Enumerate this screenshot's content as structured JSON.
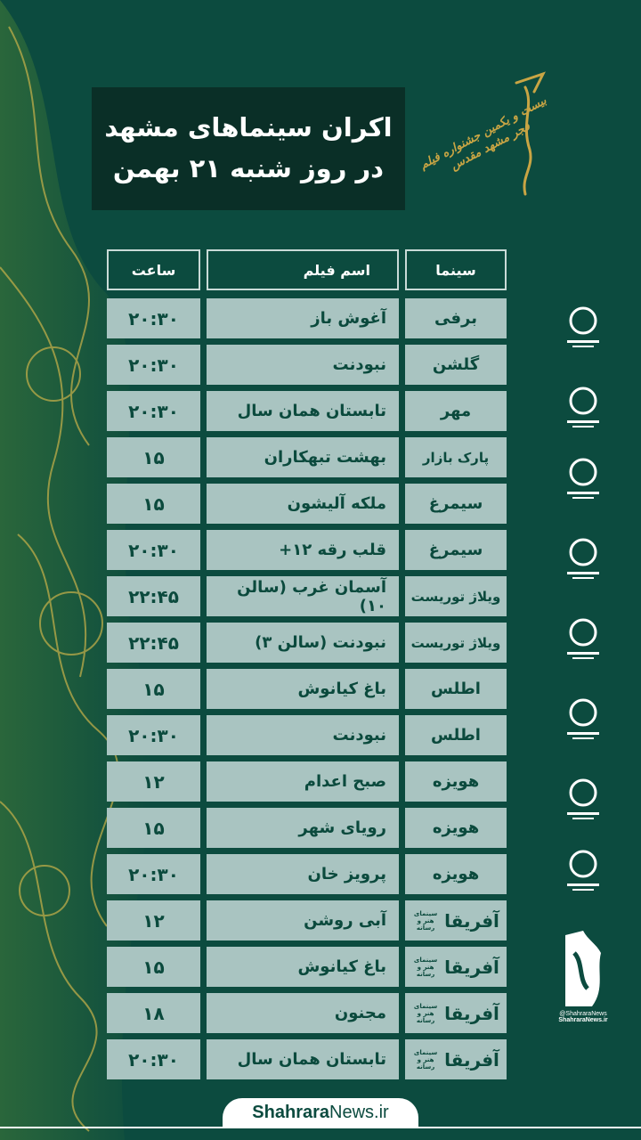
{
  "title": {
    "line1": "اکران سینماهای مشهد",
    "line2": "در روز شنبه ۲۱ بهمن"
  },
  "festival_logo_text": "بیست و یکمین جشنواره فیلم فجر مشهد مقدس",
  "table": {
    "headers": {
      "cinema": "سینما",
      "film": "اسم فیلم",
      "time": "ساعت"
    },
    "rows": [
      {
        "cinema": "برفی",
        "film": "آغوش باز",
        "time": "۲۰:۳۰"
      },
      {
        "cinema": "گلشن",
        "film": "نبودنت",
        "time": "۲۰:۳۰"
      },
      {
        "cinema": "مهر",
        "film": "تابستان همان سال",
        "time": "۲۰:۳۰"
      },
      {
        "cinema": "پارک بازار",
        "film": "بهشت تبهکاران",
        "time": "۱۵"
      },
      {
        "cinema": "سیمرغ",
        "film": "ملکه آلیشون",
        "time": "۱۵"
      },
      {
        "cinema": "سیمرغ",
        "film": "قلب رقه ۱۲+",
        "time": "۲۰:۳۰"
      },
      {
        "cinema": "ویلاژ توریست",
        "film": "آسمان غرب (سالن ۱۰)",
        "time": "۲۲:۴۵"
      },
      {
        "cinema": "ویلاژ توریست",
        "film": "نبودنت (سالن ۳)",
        "time": "۲۲:۴۵"
      },
      {
        "cinema": "اطلس",
        "film": "باغ کیانوش",
        "time": "۱۵"
      },
      {
        "cinema": "اطلس",
        "film": "نبودنت",
        "time": "۲۰:۳۰"
      },
      {
        "cinema": "هویزه",
        "film": "صبح اعدام",
        "time": "۱۲"
      },
      {
        "cinema": "هویزه",
        "film": "رویای شهر",
        "time": "۱۵"
      },
      {
        "cinema": "هویزه",
        "film": "پرویز خان",
        "time": "۲۰:۳۰"
      },
      {
        "cinema": "آفریقا",
        "cinema_sub": "سینمای هنر و رسانه",
        "film": "آبی روشن",
        "time": "۱۲"
      },
      {
        "cinema": "آفریقا",
        "cinema_sub": "سینمای هنر و رسانه",
        "film": "باغ کیانوش",
        "time": "۱۵"
      },
      {
        "cinema": "آفریقا",
        "cinema_sub": "سینمای هنر و رسانه",
        "film": "مجنون",
        "time": "۱۸"
      },
      {
        "cinema": "آفریقا",
        "cinema_sub": "سینمای هنر و رسانه",
        "film": "تابستان همان سال",
        "time": "۲۰:۳۰"
      }
    ]
  },
  "sponsor_logos": [
    "iran-emblem-logo",
    "gas-company-logo",
    "calligraphy-logo",
    "documentary-society-logo",
    "farabi-foundation-logo",
    "municipality-logo",
    "bank-logo",
    "afarinesh-logo",
    "shahrara-logo"
  ],
  "shahrara_logo_caption": {
    "line1": "@ShahraraNews",
    "line2": "ShahraraNews.ir"
  },
  "footer": {
    "brand_bold": "Shahrara",
    "brand_rest": "News.ir"
  },
  "colors": {
    "background": "#0c4b3f",
    "cell": "#a9c4c1",
    "text": "#0b4a3d",
    "title_box": "#0a2f27",
    "gold": "#c9b24a"
  }
}
